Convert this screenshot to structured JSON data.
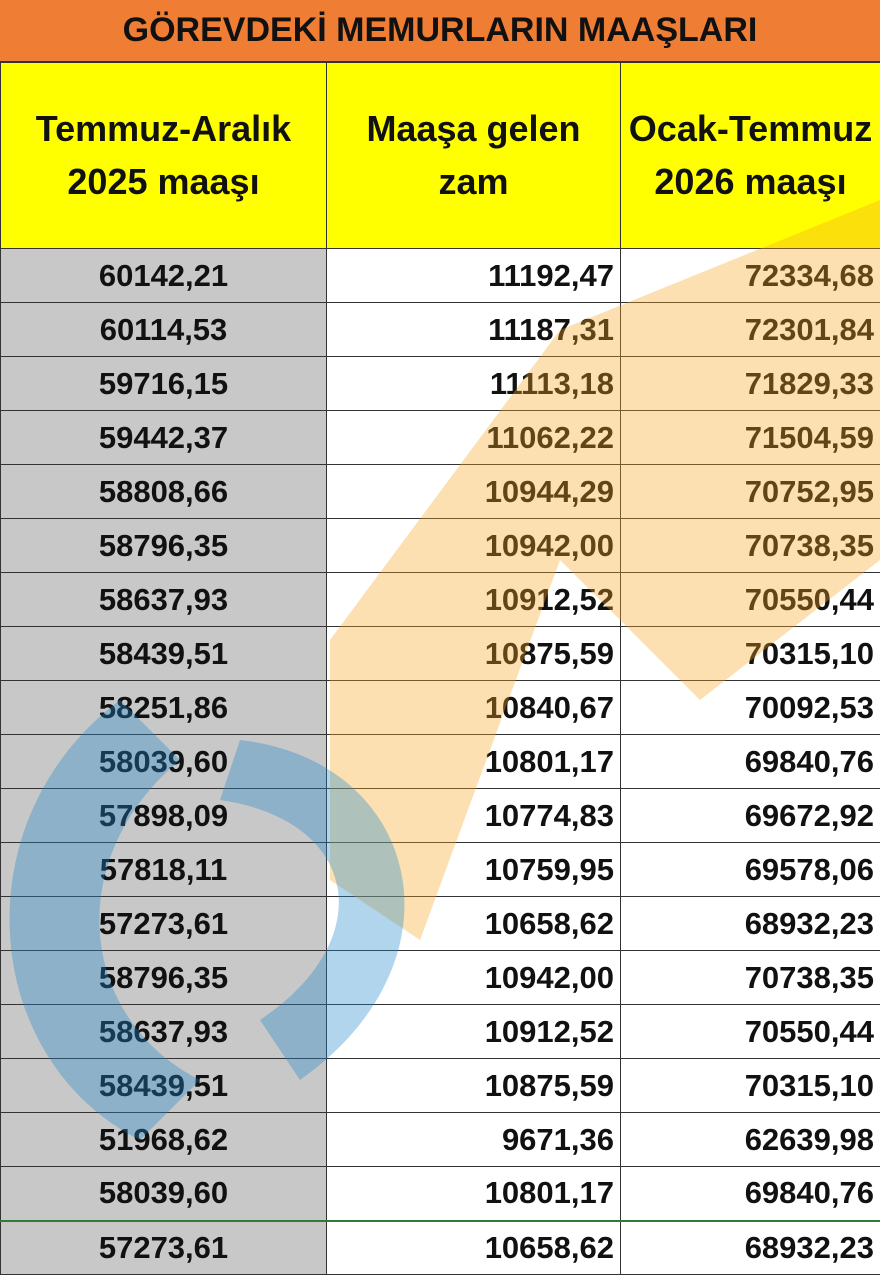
{
  "title": "GÖREVDEKİ MEMURLARIN MAAŞLARI",
  "table": {
    "headers": [
      "Temmuz-Aralık 2025 maaşı",
      "Maaşa gelen zam",
      "Ocak-Temmuz 2026 maaşı"
    ],
    "rows": [
      [
        "60142,21",
        "11192,47",
        "72334,68"
      ],
      [
        "60114,53",
        "11187,31",
        "72301,84"
      ],
      [
        "59716,15",
        "11113,18",
        "71829,33"
      ],
      [
        "59442,37",
        "11062,22",
        "71504,59"
      ],
      [
        "58808,66",
        "10944,29",
        "70752,95"
      ],
      [
        "58796,35",
        "10942,00",
        "70738,35"
      ],
      [
        "58637,93",
        "10912,52",
        "70550,44"
      ],
      [
        "58439,51",
        "10875,59",
        "70315,10"
      ],
      [
        "58251,86",
        "10840,67",
        "70092,53"
      ],
      [
        "58039,60",
        "10801,17",
        "69840,76"
      ],
      [
        "57898,09",
        "10774,83",
        "69672,92"
      ],
      [
        "57818,11",
        "10759,95",
        "69578,06"
      ],
      [
        "57273,61",
        "10658,62",
        "68932,23"
      ],
      [
        "58796,35",
        "10942,00",
        "70738,35"
      ],
      [
        "58637,93",
        "10912,52",
        "70550,44"
      ],
      [
        "58439,51",
        "10875,59",
        "70315,10"
      ],
      [
        "51968,62",
        "9671,36",
        "62639,98"
      ],
      [
        "58039,60",
        "10801,17",
        "69840,76"
      ],
      [
        "57273,61",
        "10658,62",
        "68932,23"
      ]
    ]
  }
}
